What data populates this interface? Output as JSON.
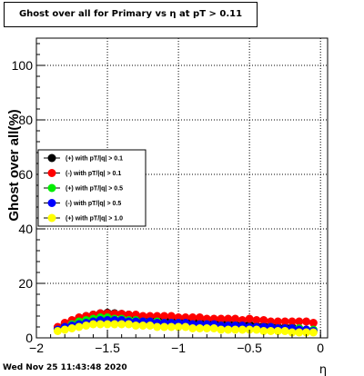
{
  "title": "Ghost over all for Primary vs   η at pT > 0.11",
  "footer_timestamp": "Wed Nov 25 11:43:48 2020",
  "chart_data": {
    "type": "scatter",
    "title": "Ghost over all for Primary vs   η at pT > 0.11",
    "xlabel": "η",
    "ylabel": "Ghost over all(%)",
    "xlim": [
      -2,
      0.05
    ],
    "ylim": [
      0,
      110
    ],
    "xticks": [
      -2,
      -1.5,
      -1,
      -0.5,
      0
    ],
    "xtick_labels": [
      "−2",
      "−1.5",
      "−1",
      "−0.5",
      "0"
    ],
    "yticks": [
      0,
      20,
      40,
      60,
      80,
      100
    ],
    "ytick_labels": [
      "0",
      "20",
      "40",
      "60",
      "80",
      "100"
    ],
    "grid": true,
    "legend_position": "center-left",
    "series": [
      {
        "name": "(+) with pT/|q| > 0.1",
        "color": "#000000",
        "x": [
          -1.85,
          -1.8,
          -1.75,
          -1.7,
          -1.65,
          -1.6,
          -1.55,
          -1.5,
          -1.45,
          -1.4,
          -1.35,
          -1.3,
          -1.25,
          -1.2,
          -1.15,
          -1.1,
          -1.05,
          -1.0,
          -0.95,
          -0.9,
          -0.85,
          -0.8,
          -0.75,
          -0.7,
          -0.65,
          -0.6,
          -0.55,
          -0.5,
          -0.45,
          -0.4,
          -0.35,
          -0.3,
          -0.25,
          -0.2,
          -0.15,
          -0.1,
          -0.05
        ],
        "y": [
          3.5,
          5,
          6,
          7,
          8,
          8.5,
          9,
          9.2,
          9,
          8.8,
          8.5,
          8,
          7.8,
          7.5,
          7.5,
          7,
          7,
          7,
          6.5,
          6.5,
          6,
          6,
          5.5,
          5.5,
          5.5,
          5,
          5,
          5,
          4.5,
          4.5,
          4.5,
          4,
          4,
          4,
          3.5,
          3,
          2.5
        ]
      },
      {
        "name": "(-) with pT/|q| > 0.1",
        "color": "#ff0000",
        "x": [
          -1.85,
          -1.8,
          -1.75,
          -1.7,
          -1.65,
          -1.6,
          -1.55,
          -1.5,
          -1.45,
          -1.4,
          -1.35,
          -1.3,
          -1.25,
          -1.2,
          -1.15,
          -1.1,
          -1.05,
          -1.0,
          -0.95,
          -0.9,
          -0.85,
          -0.8,
          -0.75,
          -0.7,
          -0.65,
          -0.6,
          -0.55,
          -0.5,
          -0.45,
          -0.4,
          -0.35,
          -0.3,
          -0.25,
          -0.2,
          -0.15,
          -0.1,
          -0.05
        ],
        "y": [
          4,
          5.5,
          6.5,
          7.5,
          8,
          8.5,
          9,
          9,
          8.8,
          8.8,
          8.5,
          8.5,
          8,
          8,
          8,
          8,
          8,
          7.5,
          7.5,
          7.5,
          7.5,
          7,
          7,
          7,
          7,
          7,
          6.5,
          7,
          6.5,
          6.5,
          6,
          6,
          6,
          6,
          6,
          6,
          5.5
        ]
      },
      {
        "name": "(+) with pT/|q| > 0.5",
        "color": "#00ee00",
        "x": [
          -1.85,
          -1.8,
          -1.75,
          -1.7,
          -1.65,
          -1.6,
          -1.55,
          -1.5,
          -1.45,
          -1.4,
          -1.35,
          -1.3,
          -1.25,
          -1.2,
          -1.15,
          -1.1,
          -1.05,
          -1.0,
          -0.95,
          -0.9,
          -0.85,
          -0.8,
          -0.75,
          -0.7,
          -0.65,
          -0.6,
          -0.55,
          -0.5,
          -0.45,
          -0.4,
          -0.35,
          -0.3,
          -0.25,
          -0.2,
          -0.15,
          -0.1,
          -0.05
        ],
        "y": [
          3,
          4,
          5,
          6,
          6.5,
          7,
          7.5,
          7.5,
          7,
          7,
          6.5,
          6.5,
          6,
          6,
          6,
          5.5,
          5.5,
          5.5,
          5,
          5,
          5,
          5,
          4.5,
          4.5,
          4.5,
          4.5,
          4,
          4,
          4,
          4,
          4,
          3.5,
          3.5,
          3.5,
          3.5,
          3,
          3
        ]
      },
      {
        "name": "(-) with pT/|q| > 0.5",
        "color": "#0000ff",
        "x": [
          -1.85,
          -1.8,
          -1.75,
          -1.7,
          -1.65,
          -1.6,
          -1.55,
          -1.5,
          -1.45,
          -1.4,
          -1.35,
          -1.3,
          -1.25,
          -1.2,
          -1.15,
          -1.1,
          -1.05,
          -1.0,
          -0.95,
          -0.9,
          -0.85,
          -0.8,
          -0.75,
          -0.7,
          -0.65,
          -0.6,
          -0.55,
          -0.5,
          -0.45,
          -0.4,
          -0.35,
          -0.3,
          -0.25,
          -0.2,
          -0.15,
          -0.1,
          -0.05
        ],
        "y": [
          3,
          4,
          4.5,
          5,
          5.5,
          6,
          6.5,
          6.5,
          6.5,
          6.5,
          6,
          6,
          6,
          6,
          5.5,
          5.5,
          5.5,
          5.5,
          5.5,
          5,
          5,
          5,
          5,
          4.5,
          4.5,
          4.5,
          4.5,
          4,
          4,
          4,
          4,
          3.5,
          3.5,
          3.5,
          3,
          3,
          2.5
        ]
      },
      {
        "name": "(+) with pT/|q| > 1.0",
        "color": "#ffff00",
        "x": [
          -1.85,
          -1.8,
          -1.75,
          -1.7,
          -1.65,
          -1.6,
          -1.55,
          -1.5,
          -1.45,
          -1.4,
          -1.35,
          -1.3,
          -1.25,
          -1.2,
          -1.15,
          -1.1,
          -1.05,
          -1.0,
          -0.95,
          -0.9,
          -0.85,
          -0.8,
          -0.75,
          -0.7,
          -0.65,
          -0.6,
          -0.55,
          -0.5,
          -0.45,
          -0.4,
          -0.35,
          -0.3,
          -0.25,
          -0.2,
          -0.15,
          -0.1,
          -0.05
        ],
        "y": [
          2.5,
          3,
          3.5,
          4,
          4.5,
          5,
          5,
          5,
          5,
          5,
          5,
          4.5,
          4.5,
          4.5,
          4,
          4,
          4,
          4,
          4,
          3.5,
          3.5,
          3.5,
          3.5,
          3,
          3,
          3,
          3,
          3,
          3,
          2.5,
          2.5,
          2.5,
          2.5,
          2,
          2,
          2,
          2
        ]
      }
    ]
  }
}
